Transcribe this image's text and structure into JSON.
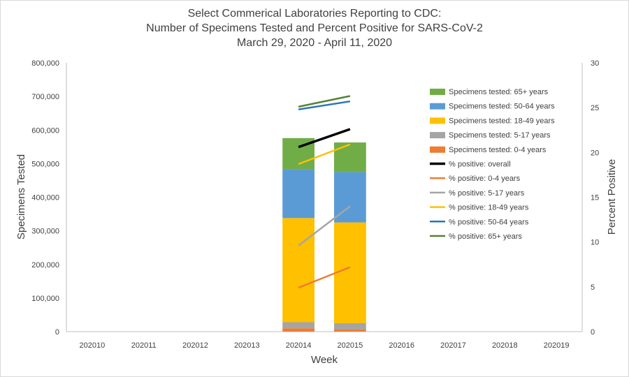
{
  "chart_data": {
    "type": "bar",
    "title_lines": [
      "Select Commerical Laboratories Reporting to CDC:",
      "Number of Specimens Tested and Percent Positive for SARS-CoV-2",
      "March 29, 2020 - April 11, 2020"
    ],
    "xlabel": "Week",
    "ylabel": "Specimens Tested",
    "y2label": "Percent Positive",
    "categories": [
      "202010",
      "202011",
      "202012",
      "202013",
      "202014",
      "202015",
      "202016",
      "202017",
      "202018",
      "202019"
    ],
    "ylim": [
      0,
      800000
    ],
    "y_ticks": [
      0,
      100000,
      200000,
      300000,
      400000,
      500000,
      600000,
      700000,
      800000
    ],
    "y_tick_labels": [
      "0",
      "100,000",
      "200,000",
      "300,000",
      "400,000",
      "500,000",
      "600,000",
      "700,000",
      "800,000"
    ],
    "y2lim": [
      0,
      30
    ],
    "y2_ticks": [
      0,
      5,
      10,
      15,
      20,
      25,
      30
    ],
    "y2_tick_labels": [
      "0",
      "5",
      "10",
      "15",
      "20",
      "25",
      "30"
    ],
    "legend_position": "right",
    "bar_series": [
      {
        "name": "Specimens tested: 0-4 years",
        "color": "#ed7d31",
        "values": [
          null,
          null,
          null,
          null,
          10000,
          7000,
          null,
          null,
          null,
          null
        ]
      },
      {
        "name": "Specimens tested: 5-17 years",
        "color": "#a5a5a5",
        "values": [
          null,
          null,
          null,
          null,
          18000,
          18000,
          null,
          null,
          null,
          null
        ]
      },
      {
        "name": "Specimens tested: 18-49 years",
        "color": "#ffc000",
        "values": [
          null,
          null,
          null,
          null,
          310000,
          300000,
          null,
          null,
          null,
          null
        ]
      },
      {
        "name": "Specimens tested: 50-64 years",
        "color": "#5b9bd5",
        "values": [
          null,
          null,
          null,
          null,
          146000,
          150000,
          null,
          null,
          null,
          null
        ]
      },
      {
        "name": "Specimens tested: 65+ years",
        "color": "#70ad47",
        "values": [
          null,
          null,
          null,
          null,
          92000,
          88000,
          null,
          null,
          null,
          null
        ]
      }
    ],
    "line_series": [
      {
        "name": "% positive: overall",
        "color": "#000000",
        "values": [
          null,
          null,
          null,
          null,
          20.6,
          22.6,
          null,
          null,
          null,
          null
        ]
      },
      {
        "name": "% positive: 0-4 years",
        "color": "#ed7d31",
        "values": [
          null,
          null,
          null,
          null,
          4.9,
          7.2,
          null,
          null,
          null,
          null
        ]
      },
      {
        "name": "% positive: 5-17 years",
        "color": "#a5a5a5",
        "values": [
          null,
          null,
          null,
          null,
          9.6,
          14.0,
          null,
          null,
          null,
          null
        ]
      },
      {
        "name": "% positive: 18-49 years",
        "color": "#ffc000",
        "values": [
          null,
          null,
          null,
          null,
          18.7,
          20.9,
          null,
          null,
          null,
          null
        ]
      },
      {
        "name": "% positive: 50-64 years",
        "color": "#2e75b6",
        "values": [
          null,
          null,
          null,
          null,
          24.8,
          25.7,
          null,
          null,
          null,
          null
        ]
      },
      {
        "name": "% positive: 65+ years",
        "color": "#548235",
        "values": [
          null,
          null,
          null,
          null,
          25.1,
          26.3,
          null,
          null,
          null,
          null
        ]
      }
    ],
    "legend_order": [
      "Specimens tested: 65+ years",
      "Specimens tested: 50-64 years",
      "Specimens tested: 18-49 years",
      "Specimens tested: 5-17 years",
      "Specimens tested: 0-4 years",
      "% positive: overall",
      "% positive: 0-4 years",
      "% positive: 5-17 years",
      "% positive: 18-49 years",
      "% positive: 50-64 years",
      "% positive: 65+ years"
    ]
  }
}
